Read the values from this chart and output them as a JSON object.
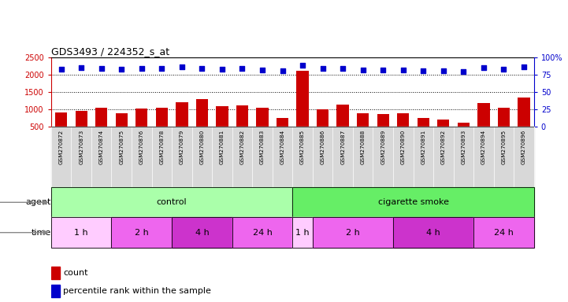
{
  "title": "GDS3493 / 224352_s_at",
  "samples": [
    "GSM270872",
    "GSM270873",
    "GSM270874",
    "GSM270875",
    "GSM270876",
    "GSM270878",
    "GSM270879",
    "GSM270880",
    "GSM270881",
    "GSM270882",
    "GSM270883",
    "GSM270884",
    "GSM270885",
    "GSM270886",
    "GSM270887",
    "GSM270888",
    "GSM270889",
    "GSM270890",
    "GSM270891",
    "GSM270892",
    "GSM270893",
    "GSM270894",
    "GSM270895",
    "GSM270896"
  ],
  "counts": [
    920,
    960,
    1050,
    900,
    1020,
    1060,
    1200,
    1300,
    1090,
    1120,
    1050,
    760,
    2120,
    1000,
    1140,
    900,
    870,
    900,
    760,
    700,
    620,
    1190,
    1050,
    1340
  ],
  "percentiles": [
    83,
    85,
    84,
    83,
    84,
    84,
    86,
    84,
    83,
    84,
    82,
    81,
    89,
    84,
    84,
    82,
    82,
    82,
    81,
    81,
    80,
    85,
    83,
    86
  ],
  "bar_color": "#cc0000",
  "dot_color": "#0000cc",
  "ylim_left": [
    500,
    2500
  ],
  "yticks_left": [
    500,
    1000,
    1500,
    2000,
    2500
  ],
  "ylim_right": [
    0,
    100
  ],
  "yticks_right": [
    0,
    25,
    50,
    75,
    100
  ],
  "grid_values": [
    1000,
    1500,
    2000
  ],
  "agent_groups": [
    {
      "label": "control",
      "color": "#aaffaa",
      "start": 0,
      "end": 12
    },
    {
      "label": "cigarette smoke",
      "color": "#66ee66",
      "start": 12,
      "end": 24
    }
  ],
  "time_groups": [
    {
      "label": "1 h",
      "color": "#ffccff",
      "start": 0,
      "end": 3
    },
    {
      "label": "2 h",
      "color": "#ee66ee",
      "start": 3,
      "end": 6
    },
    {
      "label": "4 h",
      "color": "#cc33cc",
      "start": 6,
      "end": 9
    },
    {
      "label": "24 h",
      "color": "#ee66ee",
      "start": 9,
      "end": 12
    },
    {
      "label": "1 h",
      "color": "#ffccff",
      "start": 12,
      "end": 13
    },
    {
      "label": "2 h",
      "color": "#ee66ee",
      "start": 13,
      "end": 17
    },
    {
      "label": "4 h",
      "color": "#cc33cc",
      "start": 17,
      "end": 21
    },
    {
      "label": "24 h",
      "color": "#ee66ee",
      "start": 21,
      "end": 24
    }
  ],
  "legend_count_label": "count",
  "legend_pct_label": "percentile rank within the sample",
  "agent_label": "agent",
  "time_label": "time",
  "left_axis_color": "#cc0000",
  "right_axis_color": "#0000cc",
  "bg_color": "#ffffff",
  "xticklabel_bg": "#d8d8d8"
}
